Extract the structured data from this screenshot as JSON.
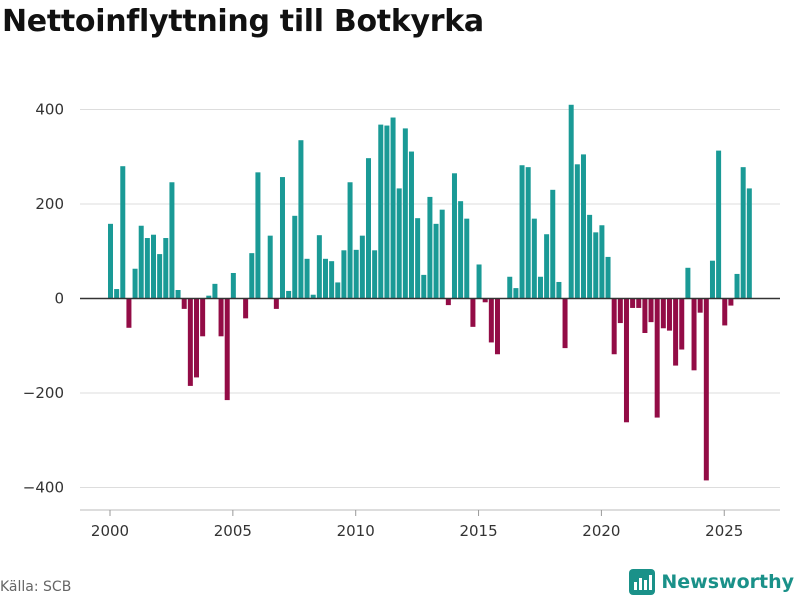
{
  "title": "Nettoinflyttning till Botkyrka",
  "source": "Källa: SCB",
  "brand": {
    "name": "Newsworthy",
    "icon": "bar-chart-logo-icon"
  },
  "colors": {
    "positive": "#1a9a96",
    "negative": "#930c46",
    "grid": "#dddddd",
    "zero": "#333333",
    "brand": "#1a9189"
  },
  "chart_data": {
    "type": "bar",
    "title": "Nettoinflyttning till Botkyrka",
    "xlabel": "",
    "ylabel": "",
    "ylim": [
      -450,
      430
    ],
    "xlim": [
      1998.6,
      2027.0
    ],
    "yticks": [
      400,
      200,
      0,
      -200,
      -400
    ],
    "ytick_labels": [
      "400",
      "200",
      "0",
      "−200",
      "−400"
    ],
    "xticks": [
      2000,
      2005,
      2010,
      2015,
      2020,
      2025
    ],
    "xtick_labels": [
      "2000",
      "2005",
      "2010",
      "2015",
      "2020",
      "2025"
    ],
    "grid": true,
    "period": "quarterly",
    "start_year": 2000,
    "values": [
      158,
      20,
      280,
      -62,
      63,
      154,
      128,
      135,
      94,
      128,
      246,
      18,
      -22,
      -185,
      -167,
      -80,
      6,
      31,
      -80,
      -215,
      54,
      0,
      -42,
      96,
      267,
      0,
      133,
      -22,
      257,
      16,
      175,
      335,
      84,
      8,
      134,
      84,
      79,
      34,
      102,
      246,
      103,
      133,
      297,
      102,
      368,
      366,
      383,
      233,
      360,
      311,
      170,
      50,
      215,
      158,
      188,
      -14,
      265,
      206,
      169,
      -60,
      72,
      -8,
      -93,
      -118,
      0,
      46,
      22,
      282,
      278,
      169,
      46,
      136,
      230,
      35,
      -105,
      410,
      284,
      305,
      177,
      140,
      155,
      88,
      -118,
      -52,
      -262,
      -20,
      -20,
      -73,
      -50,
      -252,
      -63,
      -68,
      -142,
      -108,
      65,
      -152,
      -30,
      -385,
      80,
      313,
      -57,
      -15,
      52,
      278,
      233
    ]
  }
}
